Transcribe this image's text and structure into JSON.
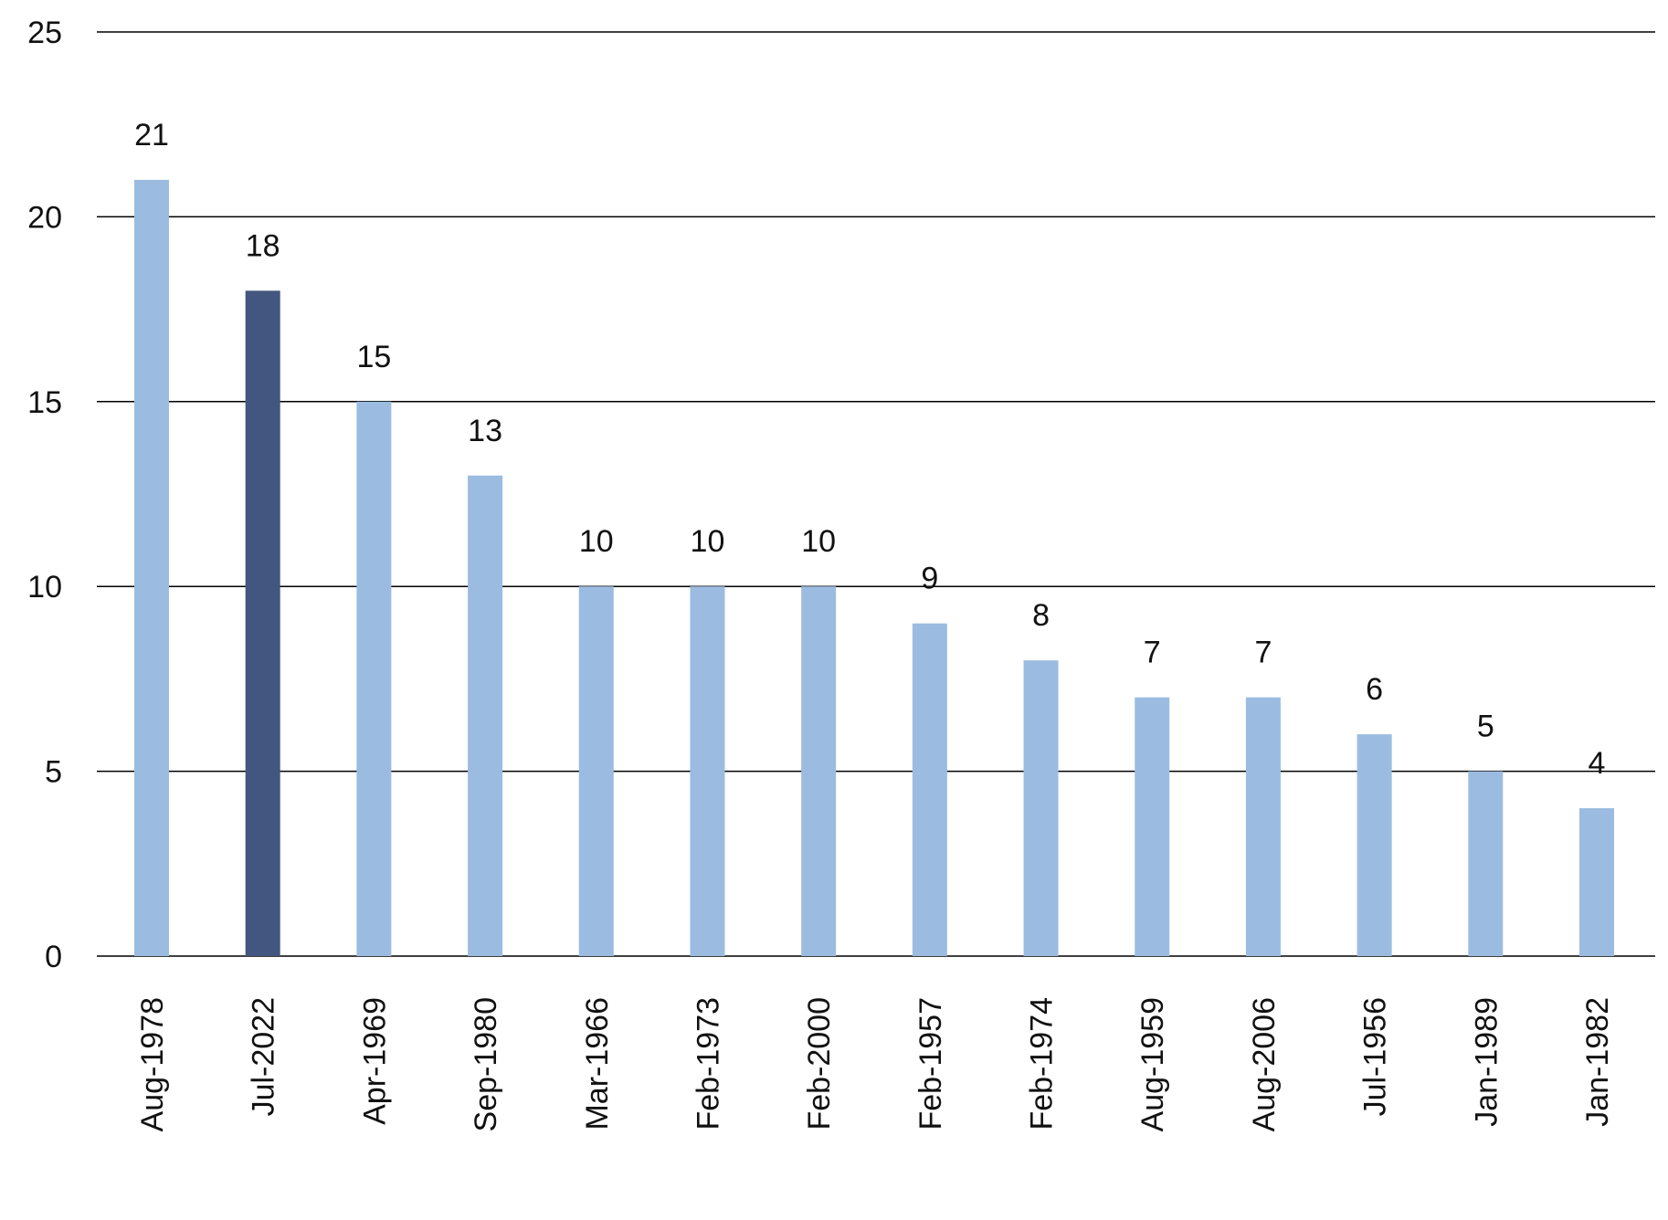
{
  "chart_data": {
    "type": "bar",
    "categories": [
      "Aug-1978",
      "Jul-2022",
      "Apr-1969",
      "Sep-1980",
      "Mar-1966",
      "Feb-1973",
      "Feb-2000",
      "Feb-1957",
      "Feb-1974",
      "Aug-1959",
      "Aug-2006",
      "Jul-1956",
      "Jan-1989",
      "Jan-1982"
    ],
    "values": [
      21,
      18,
      15,
      13,
      10,
      10,
      10,
      9,
      8,
      7,
      7,
      6,
      5,
      4
    ],
    "data_labels": [
      "21",
      "18",
      "15",
      "13",
      "10",
      "10",
      "10",
      "9",
      "8",
      "7",
      "7",
      "6",
      "5",
      "4"
    ],
    "ylim": [
      0,
      25
    ],
    "yticks": [
      0,
      5,
      10,
      15,
      20,
      25
    ],
    "ytick_labels": [
      "0",
      "5",
      "10",
      "15",
      "20",
      "25"
    ],
    "grid": true,
    "colors": {
      "default_bar": "#9bbce0",
      "highlight_bar": "#42567f",
      "gridline": "#000000",
      "text": "#111111"
    },
    "highlight_category": "Jul-2022"
  }
}
